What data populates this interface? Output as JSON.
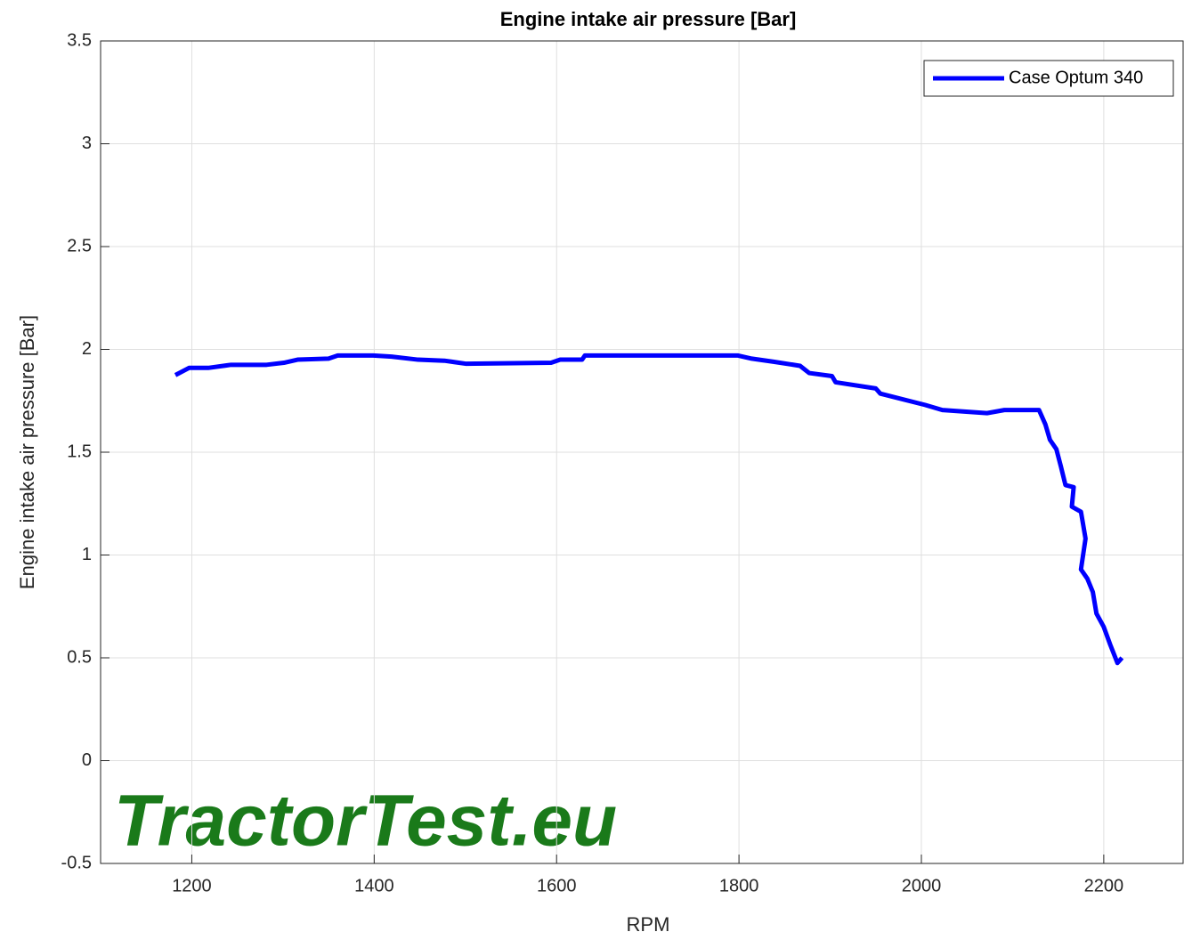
{
  "chart_data": {
    "type": "line",
    "title": "Engine intake air pressure [Bar]",
    "x_label": "RPM",
    "y_label": "Engine intake air pressure [Bar]",
    "watermark": "TractorTest.eu",
    "xlim": [
      1100,
      2287
    ],
    "xticks": [
      1200,
      1400,
      1600,
      1800,
      2000,
      2200
    ],
    "ylim": [
      -0.5,
      3.5
    ],
    "yticks": [
      -0.5,
      0,
      0.5,
      1,
      1.5,
      2,
      2.5,
      3,
      3.5
    ],
    "grid": true,
    "legend": "top-right",
    "series": [
      {
        "name": "Case Optum 340",
        "color": "#0000ff",
        "x": [
          1182,
          1197,
          1218,
          1243,
          1282,
          1301,
          1316,
          1350,
          1360,
          1399,
          1419,
          1448,
          1477,
          1501,
          1594,
          1604,
          1628,
          1631,
          1799,
          1814,
          1838,
          1867,
          1877,
          1902,
          1906,
          1950,
          1955,
          2004,
          2023,
          2072,
          2091,
          2129,
          2136,
          2141,
          2148,
          2153,
          2158,
          2167,
          2165,
          2175,
          2180,
          2175,
          2182,
          2188,
          2192,
          2200,
          2207,
          2215,
          2220
        ],
        "values": [
          1.875,
          1.91,
          1.91,
          1.925,
          1.925,
          1.935,
          1.95,
          1.955,
          1.97,
          1.97,
          1.965,
          1.95,
          1.945,
          1.93,
          1.935,
          1.95,
          1.95,
          1.97,
          1.97,
          1.955,
          1.94,
          1.92,
          1.885,
          1.87,
          1.84,
          1.81,
          1.785,
          1.73,
          1.705,
          1.69,
          1.705,
          1.705,
          1.635,
          1.56,
          1.515,
          1.43,
          1.34,
          1.33,
          1.235,
          1.21,
          1.08,
          0.93,
          0.885,
          0.82,
          0.715,
          0.65,
          0.565,
          0.475,
          0.5
        ]
      }
    ]
  }
}
